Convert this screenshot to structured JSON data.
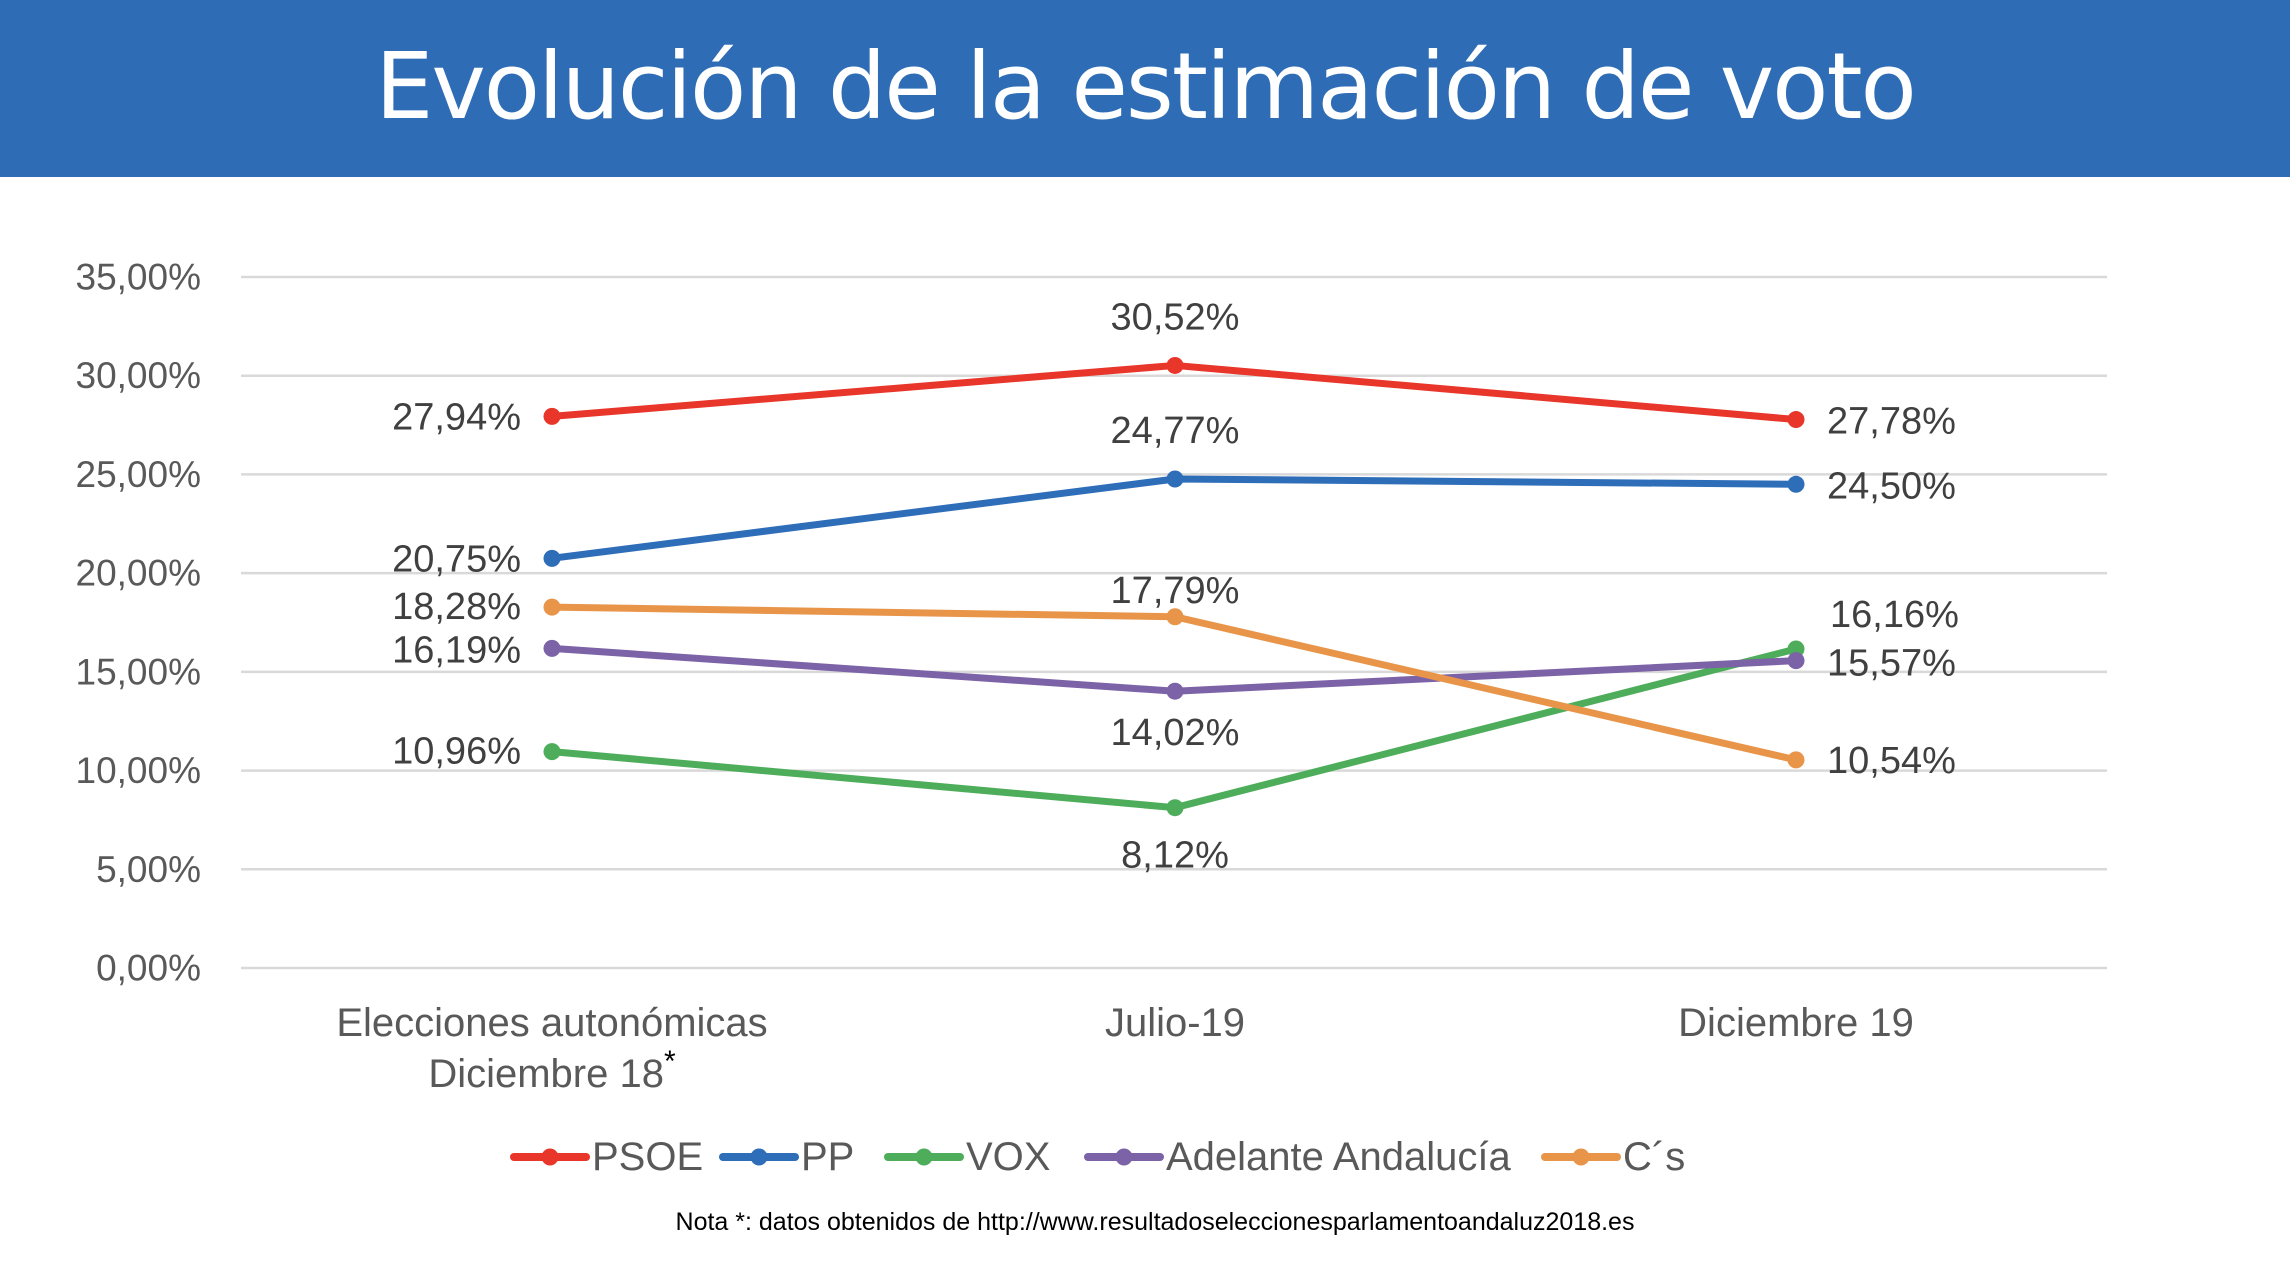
{
  "header": {
    "title": "Evolución de la estimación de voto"
  },
  "note": "Nota *: datos obtenidos de http://www.resultadoseleccionesparlamentoandaluz2018.es",
  "chart_data": {
    "type": "line",
    "title": "",
    "xlabel": "",
    "ylabel": "",
    "ylim": [
      0,
      35
    ],
    "yticks": [
      "0,00%",
      "5,00%",
      "10,00%",
      "15,00%",
      "20,00%",
      "25,00%",
      "30,00%",
      "35,00%"
    ],
    "grid": true,
    "legend_position": "bottom",
    "categories": [
      {
        "line1": "Elecciones autonómicas",
        "line2": "Diciembre 18",
        "superscript": "*"
      },
      {
        "line1": "Julio-19",
        "line2": "",
        "superscript": ""
      },
      {
        "line1": "Diciembre 19",
        "line2": "",
        "superscript": ""
      }
    ],
    "series": [
      {
        "name": "PSOE",
        "color": "#E8362A",
        "values": [
          27.94,
          30.52,
          27.78
        ],
        "labels": [
          "27,94%",
          "30,52%",
          "27,78%"
        ]
      },
      {
        "name": "PP",
        "color": "#2E6DB8",
        "values": [
          20.75,
          24.77,
          24.5
        ],
        "labels": [
          "20,75%",
          "24,77%",
          "24,50%"
        ]
      },
      {
        "name": "VOX",
        "color": "#4EAD5B",
        "values": [
          10.96,
          8.12,
          16.16
        ],
        "labels": [
          "10,96%",
          "8,12%",
          "16,16%"
        ]
      },
      {
        "name": "Adelante Andalucía",
        "color": "#7C62A6",
        "values": [
          16.19,
          14.02,
          15.57
        ],
        "labels": [
          "16,19%",
          "14,02%",
          "15,57%"
        ]
      },
      {
        "name": "C´s",
        "color": "#E8954A",
        "values": [
          18.28,
          17.79,
          10.54
        ],
        "labels": [
          "18,28%",
          "17,79%",
          "10,54%"
        ]
      }
    ]
  }
}
